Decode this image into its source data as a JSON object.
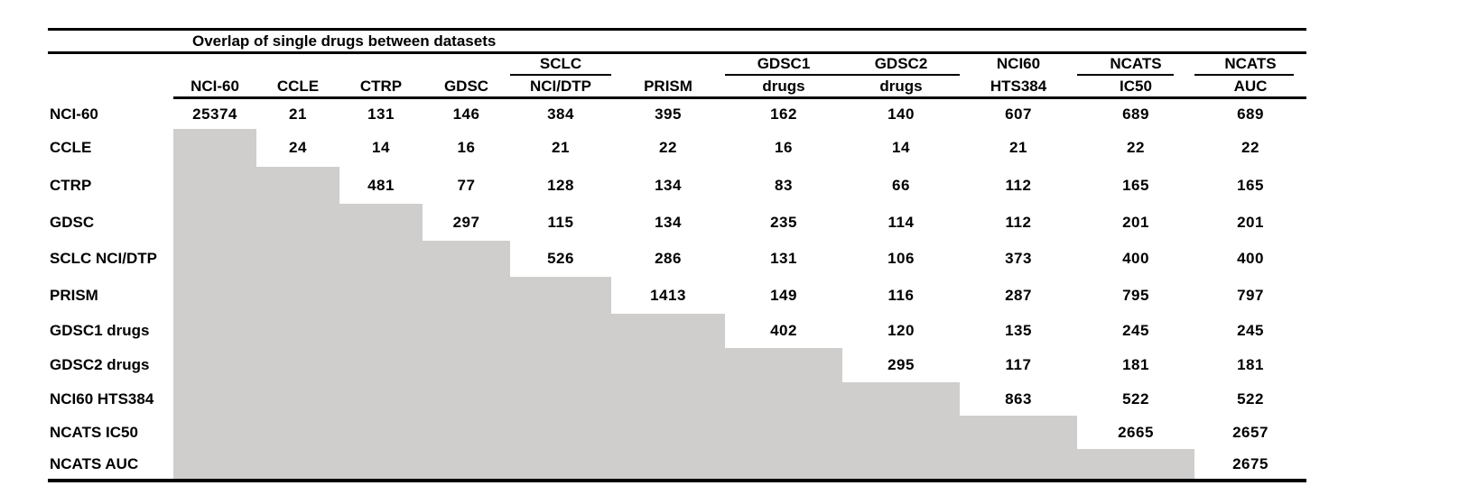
{
  "title": "Overlap of single drugs between datasets",
  "columns": [
    {
      "top": "",
      "bottom": "NCI-60",
      "spanner_line": false
    },
    {
      "top": "",
      "bottom": "CCLE",
      "spanner_line": false
    },
    {
      "top": "",
      "bottom": "CTRP",
      "spanner_line": false
    },
    {
      "top": "",
      "bottom": "GDSC",
      "spanner_line": false
    },
    {
      "top": "SCLC",
      "bottom": "NCI/DTP",
      "spanner_line": true
    },
    {
      "top": "",
      "bottom": "PRISM",
      "spanner_line": false
    },
    {
      "top": "GDSC1",
      "bottom": "drugs",
      "spanner_line": true
    },
    {
      "top": "GDSC2",
      "bottom": "drugs",
      "spanner_line": true
    },
    {
      "top": "NCI60",
      "bottom": "HTS384",
      "spanner_line": false
    },
    {
      "top": "NCATS",
      "bottom": "IC50",
      "spanner_line": true
    },
    {
      "top": "NCATS",
      "bottom": "AUC",
      "spanner_line": true
    }
  ],
  "rows": [
    {
      "label": "NCI-60",
      "values": [
        "25374",
        "21",
        "131",
        "146",
        "384",
        "395",
        "162",
        "140",
        "607",
        "689",
        "689"
      ]
    },
    {
      "label": "CCLE",
      "values": [
        null,
        "24",
        "14",
        "16",
        "21",
        "22",
        "16",
        "14",
        "21",
        "22",
        "22"
      ]
    },
    {
      "label": "CTRP",
      "values": [
        null,
        null,
        "481",
        "77",
        "128",
        "134",
        "83",
        "66",
        "112",
        "165",
        "165"
      ]
    },
    {
      "label": "GDSC",
      "values": [
        null,
        null,
        null,
        "297",
        "115",
        "134",
        "235",
        "114",
        "112",
        "201",
        "201"
      ]
    },
    {
      "label": "SCLC NCI/DTP",
      "values": [
        null,
        null,
        null,
        null,
        "526",
        "286",
        "131",
        "106",
        "373",
        "400",
        "400"
      ]
    },
    {
      "label": "PRISM",
      "values": [
        null,
        null,
        null,
        null,
        null,
        "1413",
        "149",
        "116",
        "287",
        "795",
        "797"
      ]
    },
    {
      "label": "GDSC1 drugs",
      "values": [
        null,
        null,
        null,
        null,
        null,
        null,
        "402",
        "120",
        "135",
        "245",
        "245"
      ]
    },
    {
      "label": "GDSC2 drugs",
      "values": [
        null,
        null,
        null,
        null,
        null,
        null,
        null,
        "295",
        "117",
        "181",
        "181"
      ]
    },
    {
      "label": "NCI60 HTS384",
      "values": [
        null,
        null,
        null,
        null,
        null,
        null,
        null,
        null,
        "863",
        "522",
        "522"
      ]
    },
    {
      "label": "NCATS IC50",
      "values": [
        null,
        null,
        null,
        null,
        null,
        null,
        null,
        null,
        null,
        "2665",
        "2657"
      ]
    },
    {
      "label": "NCATS AUC",
      "values": [
        null,
        null,
        null,
        null,
        null,
        null,
        null,
        null,
        null,
        null,
        "2675"
      ]
    }
  ],
  "colors": {
    "shaded_cell": "#cfcecd",
    "rule": "#000000",
    "text": "#000000",
    "background": "#ffffff"
  }
}
